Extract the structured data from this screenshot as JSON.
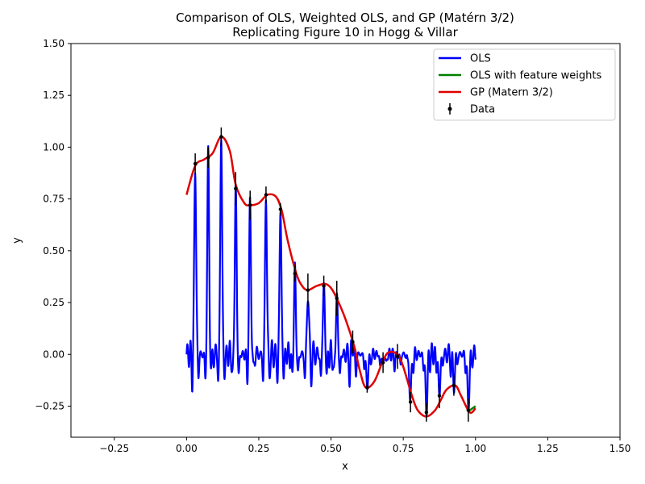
{
  "chart_data": {
    "type": "line",
    "title": "Comparison of OLS, Weighted OLS, and GP (Matérn 3/2)",
    "subtitle": "Replicating Figure 10 in Hogg & Villar",
    "xlabel": "x",
    "ylabel": "y",
    "xlim": [
      -0.4,
      1.5
    ],
    "ylim": [
      -0.4,
      1.5
    ],
    "xticks": [
      -0.25,
      0.0,
      0.25,
      0.5,
      0.75,
      1.0,
      1.25,
      1.5
    ],
    "xtick_labels": [
      "−0.25",
      "0.00",
      "0.25",
      "0.50",
      "0.75",
      "1.00",
      "1.25",
      "1.50"
    ],
    "yticks": [
      -0.25,
      0.0,
      0.25,
      0.5,
      0.75,
      1.0,
      1.25,
      1.5
    ],
    "ytick_labels": [
      "−0.25",
      "0.00",
      "0.25",
      "0.50",
      "0.75",
      "1.00",
      "1.25",
      "1.50"
    ],
    "grid": false,
    "legend_position": "top-right",
    "legend": [
      {
        "label": "OLS",
        "color": "#0000ff",
        "kind": "line"
      },
      {
        "label": "OLS with feature weights",
        "color": "#008000",
        "kind": "line"
      },
      {
        "label": "GP (Matern 3/2)",
        "color": "#e00000",
        "kind": "line"
      },
      {
        "label": "Data",
        "color": "#000000",
        "kind": "errorbar"
      }
    ],
    "series": [
      {
        "name": "GP (Matern 3/2)",
        "color": "#e00000",
        "x": [
          0.0,
          0.03,
          0.06,
          0.09,
          0.12,
          0.15,
          0.17,
          0.2,
          0.22,
          0.25,
          0.28,
          0.31,
          0.33,
          0.35,
          0.38,
          0.4,
          0.42,
          0.45,
          0.48,
          0.5,
          0.52,
          0.55,
          0.58,
          0.6,
          0.62,
          0.65,
          0.68,
          0.7,
          0.73,
          0.75,
          0.78,
          0.8,
          0.83,
          0.86,
          0.88,
          0.9,
          0.93,
          0.95,
          0.98,
          1.0
        ],
        "y": [
          0.77,
          0.91,
          0.94,
          0.97,
          1.05,
          0.98,
          0.82,
          0.73,
          0.72,
          0.73,
          0.77,
          0.76,
          0.69,
          0.55,
          0.39,
          0.33,
          0.31,
          0.33,
          0.34,
          0.32,
          0.27,
          0.17,
          0.04,
          -0.08,
          -0.16,
          -0.13,
          -0.03,
          0.01,
          0.0,
          -0.06,
          -0.2,
          -0.27,
          -0.3,
          -0.27,
          -0.22,
          -0.17,
          -0.15,
          -0.2,
          -0.28,
          -0.26
        ]
      },
      {
        "name": "OLS with feature weights",
        "color": "#008000",
        "x": [
          0.975,
          0.98,
          0.99,
          1.0
        ],
        "y": [
          -0.27,
          -0.27,
          -0.26,
          -0.25
        ]
      }
    ],
    "ols": {
      "name": "OLS",
      "color": "#0000ff",
      "description_values": {
        "data_x": [
          0.03,
          0.075,
          0.12,
          0.17,
          0.22,
          0.275,
          0.325,
          0.375,
          0.42,
          0.475,
          0.52,
          0.575,
          0.625,
          0.68,
          0.73,
          0.775,
          0.83,
          0.875,
          0.925,
          0.975
        ],
        "data_y": [
          0.92,
          0.95,
          1.05,
          0.8,
          0.72,
          0.77,
          0.7,
          0.39,
          0.31,
          0.33,
          0.27,
          0.06,
          -0.16,
          -0.04,
          -0.01,
          -0.23,
          -0.28,
          -0.2,
          -0.15,
          -0.27
        ]
      },
      "spike_widths": [
        0.004,
        0.006,
        0.004
      ],
      "extreme_values": [
        {
          "x": 0.02,
          "y": -0.22
        },
        {
          "x": 0.065,
          "y": -0.22
        },
        {
          "x": 0.18,
          "y": -0.17
        },
        {
          "x": 0.23,
          "y": -0.17
        },
        {
          "x": 0.33,
          "y": -0.17
        },
        {
          "x": 0.475,
          "y": -0.07
        },
        {
          "x": 0.83,
          "y": -0.32
        },
        {
          "x": 0.98,
          "y": -0.3
        }
      ]
    },
    "data_points": {
      "name": "Data",
      "color": "#000000",
      "x": [
        0.03,
        0.075,
        0.12,
        0.17,
        0.22,
        0.275,
        0.325,
        0.375,
        0.42,
        0.475,
        0.52,
        0.575,
        0.625,
        0.68,
        0.73,
        0.775,
        0.83,
        0.875,
        0.925,
        0.975
      ],
      "y": [
        0.92,
        0.95,
        1.05,
        0.8,
        0.72,
        0.77,
        0.7,
        0.39,
        0.31,
        0.33,
        0.27,
        0.06,
        -0.16,
        -0.04,
        -0.01,
        -0.23,
        -0.28,
        -0.2,
        -0.15,
        -0.27
      ],
      "err": [
        0.05,
        0.05,
        0.045,
        0.08,
        0.07,
        0.04,
        0.03,
        0.04,
        0.08,
        0.05,
        0.085,
        0.055,
        0.025,
        0.05,
        0.06,
        0.05,
        0.045,
        0.06,
        0.05,
        0.055
      ]
    }
  }
}
